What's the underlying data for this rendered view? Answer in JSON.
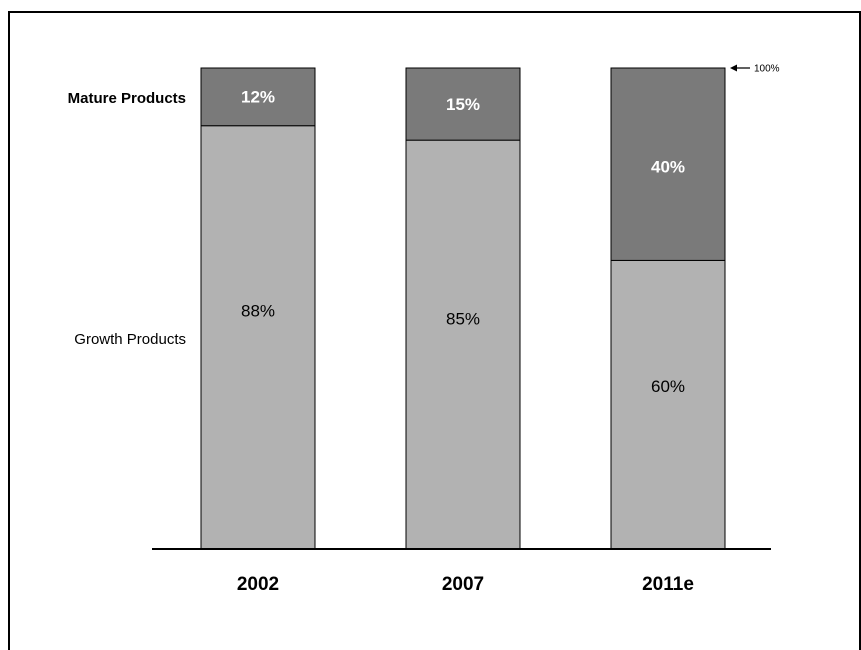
{
  "chart_data": {
    "type": "bar",
    "stacked": true,
    "percent": true,
    "categories": [
      "2002",
      "2007",
      "2011e"
    ],
    "series": [
      {
        "name": "Growth Products",
        "values": [
          88,
          85,
          60
        ],
        "labels": [
          "88%",
          "85%",
          "60%"
        ],
        "color": "#b2b2b2",
        "text_color": "#000000",
        "bold": false
      },
      {
        "name": "Mature Products",
        "values": [
          12,
          15,
          40
        ],
        "labels": [
          "12%",
          "15%",
          "40%"
        ],
        "color": "#7a7a7a",
        "text_color": "#ffffff",
        "bold": true
      }
    ],
    "ylim": [
      0,
      100
    ],
    "top_annotation": "100%",
    "legend": "left, inline row labels",
    "grid": false
  }
}
